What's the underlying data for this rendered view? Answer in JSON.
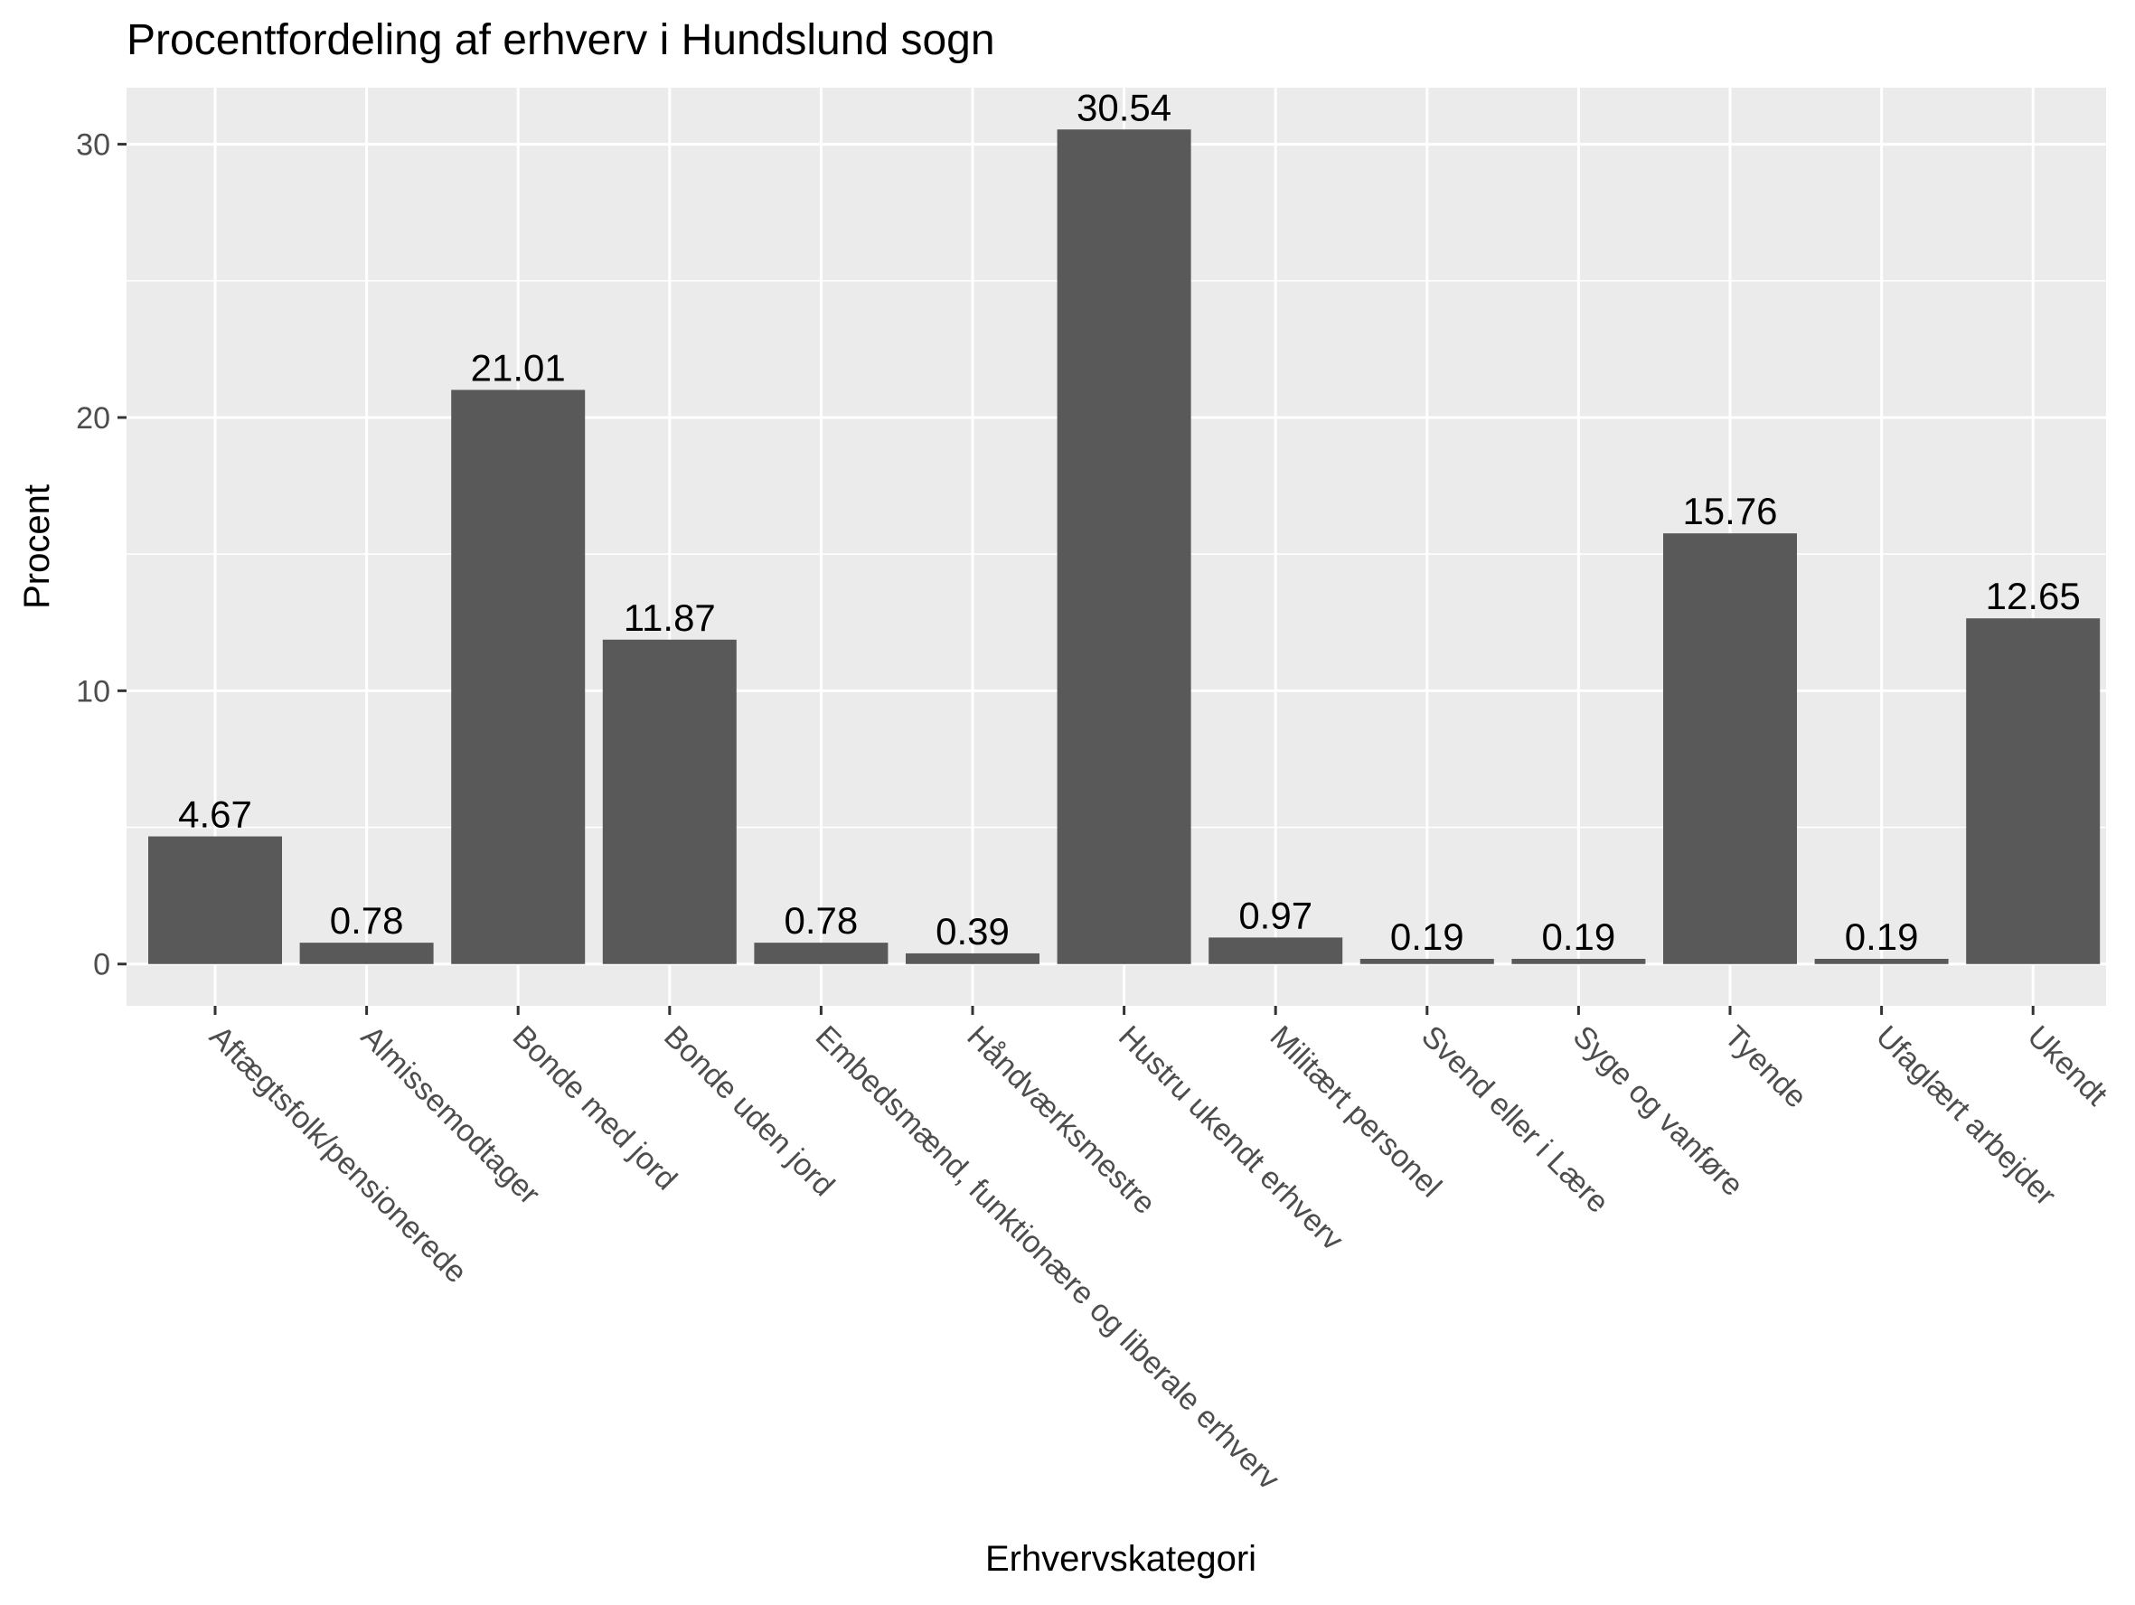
{
  "chart_data": {
    "type": "bar",
    "title": "Procentfordeling af erhverv i Hundslund sogn",
    "xlabel": "Erhvervskategori",
    "ylabel": "Procent",
    "categories": [
      "Aftægtsfolk/pensionerede",
      "Almissemodtager",
      "Bonde med jord",
      "Bonde uden jord",
      "Embedsmænd, funktionære og liberale erhverv",
      "Håndværksmestre",
      "Hustru ukendt erhverv",
      "Militært personel",
      "Svend eller i Lære",
      "Syge og vanføre",
      "Tyende",
      "Ufaglært arbejder",
      "Ukendt"
    ],
    "values": [
      4.67,
      0.78,
      21.01,
      11.87,
      0.78,
      0.39,
      30.54,
      0.97,
      0.19,
      0.19,
      15.76,
      0.19,
      12.65
    ],
    "value_labels": [
      "4.67",
      "0.78",
      "21.01",
      "11.87",
      "0.78",
      "0.39",
      "30.54",
      "0.97",
      "0.19",
      "0.19",
      "15.76",
      "0.19",
      "12.65"
    ],
    "y_ticks": [
      0,
      10,
      20,
      30
    ],
    "y_tick_labels": [
      "0",
      "10",
      "20",
      "30"
    ],
    "ylim": [
      -1.53,
      32.07
    ],
    "grid": true,
    "legend": "none",
    "colors": {
      "bar": "#595959",
      "panel": "#ebebeb",
      "grid": "#ffffff"
    }
  }
}
